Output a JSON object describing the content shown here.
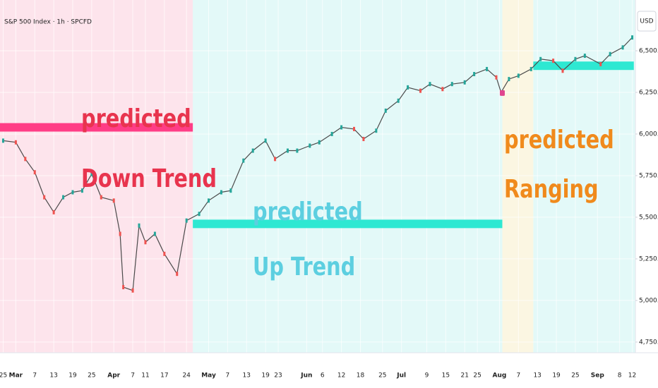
{
  "chart_data": {
    "type": "line",
    "title": "S&P 500 Index · 1h · SPCFD",
    "currency": "USD",
    "color": "#4a4a4a",
    "x": [
      0,
      4,
      7,
      10,
      13,
      16,
      19,
      22,
      25,
      28,
      31,
      35,
      37,
      38,
      41,
      43,
      45,
      48,
      51,
      55,
      58,
      62,
      65,
      69,
      72,
      76,
      79,
      83,
      86,
      90,
      93,
      97,
      100,
      104,
      107,
      111,
      114,
      118,
      121,
      125,
      128,
      132,
      135,
      139,
      142,
      146,
      149,
      153,
      156,
      157.5,
      160,
      163,
      167,
      170,
      174,
      177,
      181,
      184,
      189,
      192,
      196,
      199
    ],
    "values": [
      5960,
      5950,
      5850,
      5770,
      5620,
      5530,
      5620,
      5650,
      5660,
      5760,
      5620,
      5600,
      5400,
      5080,
      5060,
      5450,
      5350,
      5400,
      5280,
      5160,
      5480,
      5520,
      5600,
      5650,
      5660,
      5840,
      5900,
      5960,
      5850,
      5900,
      5900,
      5930,
      5950,
      6000,
      6040,
      6030,
      5970,
      6020,
      6140,
      6200,
      6280,
      6260,
      6300,
      6270,
      6300,
      6310,
      6360,
      6390,
      6340,
      6250,
      6330,
      6350,
      6390,
      6450,
      6440,
      6380,
      6450,
      6470,
      6420,
      6480,
      6520,
      6580
    ],
    "xlim": [
      -1,
      200
    ],
    "ylim": [
      4686,
      6805
    ],
    "xticks": [
      {
        "value": 0,
        "label": "25"
      },
      {
        "value": 4,
        "label": "Mar"
      },
      {
        "value": 10,
        "label": "7"
      },
      {
        "value": 16,
        "label": "13"
      },
      {
        "value": 22,
        "label": "19"
      },
      {
        "value": 28,
        "label": "25"
      },
      {
        "value": 35,
        "label": "Apr"
      },
      {
        "value": 41,
        "label": "7"
      },
      {
        "value": 45,
        "label": "11"
      },
      {
        "value": 51,
        "label": "17"
      },
      {
        "value": 58,
        "label": "24"
      },
      {
        "value": 65,
        "label": "May"
      },
      {
        "value": 71,
        "label": "7"
      },
      {
        "value": 77,
        "label": "13"
      },
      {
        "value": 83,
        "label": "19"
      },
      {
        "value": 87,
        "label": "23"
      },
      {
        "value": 96,
        "label": "Jun"
      },
      {
        "value": 101,
        "label": "6"
      },
      {
        "value": 107,
        "label": "12"
      },
      {
        "value": 113,
        "label": "18"
      },
      {
        "value": 120,
        "label": "25"
      },
      {
        "value": 126,
        "label": "Jul"
      },
      {
        "value": 134,
        "label": "9"
      },
      {
        "value": 140,
        "label": "15"
      },
      {
        "value": 146,
        "label": "21"
      },
      {
        "value": 150,
        "label": "25"
      },
      {
        "value": 157,
        "label": "Aug"
      },
      {
        "value": 163,
        "label": "7"
      },
      {
        "value": 169,
        "label": "13"
      },
      {
        "value": 175,
        "label": "19"
      },
      {
        "value": 181,
        "label": "25"
      },
      {
        "value": 188,
        "label": "Sep"
      },
      {
        "value": 195,
        "label": "8"
      },
      {
        "value": 199,
        "label": "12"
      }
    ],
    "yticks": [
      {
        "value": 4750,
        "label": "4,750.00"
      },
      {
        "value": 5000,
        "label": "5,000.00"
      },
      {
        "value": 5250,
        "label": "5,250.00"
      },
      {
        "value": 5500,
        "label": "5,500.00"
      },
      {
        "value": 5750,
        "label": "5,750.00"
      },
      {
        "value": 6000,
        "label": "6,000.00"
      },
      {
        "value": 6250,
        "label": "6,250.00"
      },
      {
        "value": 6500,
        "label": "6,500.00"
      }
    ],
    "grid": true,
    "regions": [
      {
        "start": -1,
        "end": 60,
        "color": "#fde4ec"
      },
      {
        "start": 60,
        "end": 157.9,
        "color": "#e3f9f8"
      },
      {
        "start": 157.9,
        "end": 167.7,
        "color": "#fbf6e2"
      },
      {
        "start": 167.7,
        "end": 200,
        "color": "#e3f9f8"
      }
    ],
    "levels": [
      {
        "start": -1,
        "end": 60,
        "value": 6040,
        "color": "#ff3d86"
      },
      {
        "start": 60,
        "end": 157.9,
        "value": 5460,
        "color": "#2ee8d2"
      },
      {
        "start": 167.7,
        "end": 199.5,
        "value": 6410,
        "color": "#2ee8d2"
      }
    ],
    "markers": [
      {
        "x": 157.9,
        "value": 6246,
        "color": "#e0458f"
      }
    ],
    "annotations": [
      {
        "lines": [
          "predicted",
          "Down Trend"
        ],
        "color": "#e8344e"
      },
      {
        "lines": [
          "predicted",
          "Up Trend"
        ],
        "color": "#5ccfe0"
      },
      {
        "lines": [
          "predicted",
          "Ranging"
        ],
        "color": "#f08a1c"
      }
    ]
  }
}
